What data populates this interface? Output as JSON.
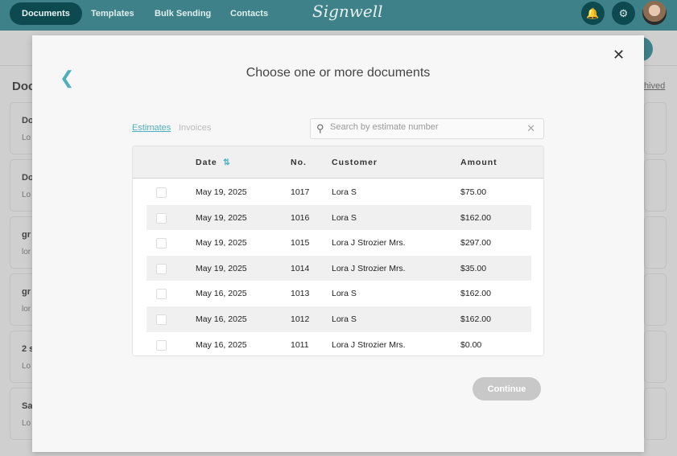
{
  "nav": {
    "items": [
      "Documents",
      "Templates",
      "Bulk Sending",
      "Contacts"
    ],
    "logo": "Signwell",
    "bell_icon": "bell-icon",
    "gear_icon": "gear-icon"
  },
  "background": {
    "title": "Doc",
    "archived": "hived",
    "cards": [
      [
        "Do",
        "Lo"
      ],
      [
        "Do",
        "Lo"
      ],
      [
        "gr",
        "lor"
      ],
      [
        "gr",
        "lor"
      ],
      [
        "2 s",
        "Lo"
      ],
      [
        "Sa",
        "Lo"
      ]
    ]
  },
  "modal": {
    "title": "Choose one or more documents",
    "tabs": [
      "Estimates",
      "Invoices"
    ],
    "search_placeholder": "Search by estimate number",
    "search_value": "",
    "columns": [
      "Date",
      "No.",
      "Customer",
      "Amount"
    ],
    "rows": [
      [
        "May 19, 2025",
        "1017",
        "Lora S",
        "$75.00"
      ],
      [
        "May 19, 2025",
        "1016",
        "Lora S",
        "$162.00"
      ],
      [
        "May 19, 2025",
        "1015",
        "Lora J Strozier Mrs.",
        "$297.00"
      ],
      [
        "May 19, 2025",
        "1014",
        "Lora J Strozier Mrs.",
        "$35.00"
      ],
      [
        "May 16, 2025",
        "1013",
        "Lora S",
        "$162.00"
      ],
      [
        "May 16, 2025",
        "1012",
        "Lora S",
        "$162.00"
      ],
      [
        "May 16, 2025",
        "1011",
        "Lora J Strozier Mrs.",
        "$0.00"
      ]
    ],
    "continue": "Continue"
  },
  "colors": {
    "accent": "#4fb0bd",
    "nav": "#3f8189",
    "nav_active": "#0d4a50"
  }
}
